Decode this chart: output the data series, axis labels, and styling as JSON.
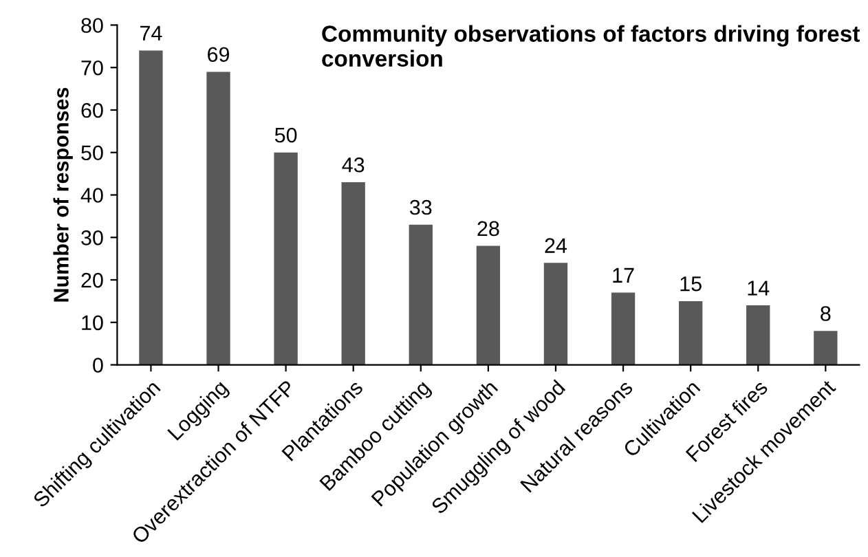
{
  "chart_data": {
    "type": "bar",
    "title": "Community observations of factors driving forest conversion",
    "ylabel": "Number of responses",
    "categories": [
      "Shifting cultivation",
      "Logging",
      "Overextraction of NTFP",
      "Plantations",
      "Bamboo cutting",
      "Population growth",
      "Smuggling of wood",
      "Natural reasons",
      "Cultivation",
      "Forest fires",
      "Livestock movement"
    ],
    "values": [
      74,
      69,
      50,
      43,
      33,
      28,
      24,
      17,
      15,
      14,
      8
    ],
    "color": "#595959",
    "ylim": [
      0,
      80
    ],
    "yticks": [
      0,
      10,
      20,
      30,
      40,
      50,
      60,
      70,
      80
    ],
    "grid": false,
    "data_labels": true
  }
}
